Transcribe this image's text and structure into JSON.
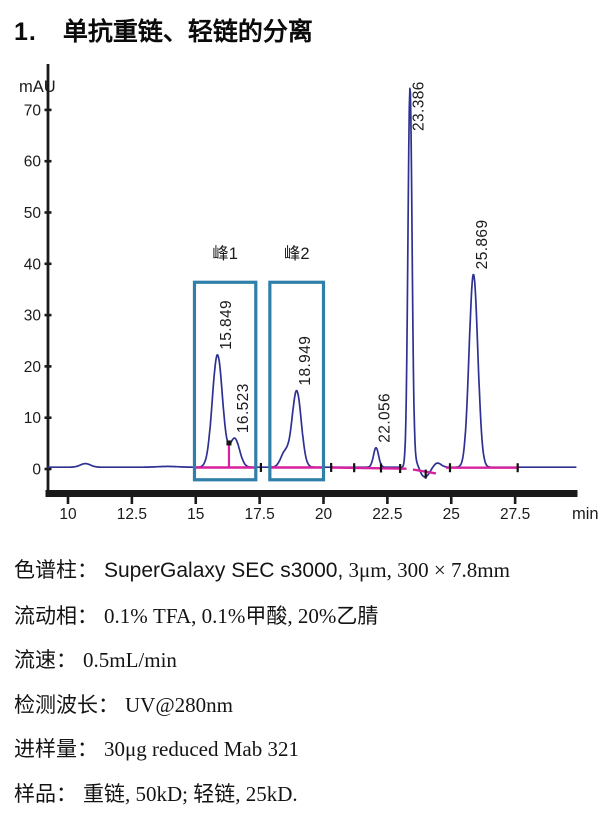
{
  "title": {
    "number": "1.",
    "text": "单抗重链、轻链的分离"
  },
  "chart_data": {
    "type": "line",
    "title": "",
    "xlabel": "min",
    "ylabel": "mAU",
    "xlim": [
      9.2,
      29.9
    ],
    "ylim": [
      -4,
      78
    ],
    "x_ticks": [
      {
        "t": 10,
        "label": "10"
      },
      {
        "t": 12.5,
        "label": "12.5"
      },
      {
        "t": 15,
        "label": "15"
      },
      {
        "t": 17.5,
        "label": "17.5"
      },
      {
        "t": 20,
        "label": "20"
      },
      {
        "t": 22.5,
        "label": "22.5"
      },
      {
        "t": 25,
        "label": "25"
      },
      {
        "t": 27.5,
        "label": "27.5"
      }
    ],
    "y_ticks": [
      {
        "v": 0,
        "label": "0"
      },
      {
        "v": 10,
        "label": "10"
      },
      {
        "v": 20,
        "label": "20"
      },
      {
        "v": 30,
        "label": "30"
      },
      {
        "v": 40,
        "label": "40"
      },
      {
        "v": 50,
        "label": "50"
      },
      {
        "v": 60,
        "label": "60"
      },
      {
        "v": 70,
        "label": "70"
      }
    ],
    "grid": false,
    "baseline_mAU": 0.35,
    "peaks": [
      {
        "label": "15.849",
        "rt_min": 15.849,
        "height_mAU": 21.9,
        "sigma": 0.2
      },
      {
        "label": "16.523",
        "rt_min": 16.523,
        "height_mAU": 5.6,
        "sigma": 0.19
      },
      {
        "label": "18.949",
        "rt_min": 18.949,
        "height_mAU": 14.9,
        "sigma": 0.18
      },
      {
        "label": "22.056",
        "rt_min": 22.056,
        "height_mAU": 3.8,
        "sigma": 0.1
      },
      {
        "label": "23.386",
        "rt_min": 23.386,
        "height_mAU": 74.0,
        "sigma": 0.08
      },
      {
        "label": "25.869",
        "rt_min": 25.869,
        "height_mAU": 37.6,
        "sigma": 0.17
      }
    ],
    "minor_features": [
      {
        "rt_min": 10.68,
        "height_mAU": 0.7,
        "sigma": 0.2
      },
      {
        "rt_min": 13.9,
        "height_mAU": 0.15,
        "sigma": 0.4
      },
      {
        "rt_min": 18.48,
        "height_mAU": 2.8,
        "sigma": 0.16
      },
      {
        "rt_min": 23.62,
        "height_mAU": 1.2,
        "sigma": 0.1
      },
      {
        "rt_min": 23.97,
        "height_mAU": -1.9,
        "sigma": 0.18
      },
      {
        "rt_min": 24.45,
        "height_mAU": 0.85,
        "sigma": 0.15
      }
    ],
    "regions": [
      {
        "label": "峰1",
        "t1": 14.95,
        "t2": 17.35
      },
      {
        "label": "峰2",
        "t1": 17.9,
        "t2": 20.0
      }
    ],
    "region_box_mAU": {
      "bottom": -2.1,
      "top": 36.4,
      "label_y": 42.1
    },
    "integration_baselines": [
      [
        [
          14.97,
          0.3
        ],
        [
          17.33,
          0.3
        ]
      ],
      [
        [
          17.95,
          0.3
        ],
        [
          19.98,
          0.3
        ]
      ],
      [
        [
          20.3,
          0.3
        ],
        [
          23.25,
          0.05
        ]
      ],
      [
        [
          23.5,
          -0.1
        ],
        [
          24.4,
          -0.85
        ]
      ],
      [
        [
          24.8,
          0.25
        ],
        [
          27.65,
          0.25
        ]
      ]
    ],
    "integration_marks": [
      {
        "t": 17.55,
        "m": 0.3
      },
      {
        "t": 20.3,
        "m": 0.3
      },
      {
        "t": 21.2,
        "m": 0.25
      },
      {
        "t": 22.25,
        "m": 0.2
      },
      {
        "t": 23.0,
        "m": 0.1
      },
      {
        "t": 24.0,
        "m": -1.0
      },
      {
        "t": 24.95,
        "m": 0.25
      },
      {
        "t": 27.6,
        "m": 0.25
      }
    ],
    "drop_line": {
      "t": 16.3,
      "from_mAU": 0.3
    },
    "colors": {
      "curve": "#2e3192",
      "integration": "#d9219f",
      "region_box": "#2f7fa9",
      "axis": "#1a1a1a",
      "text": "#1b1b1b"
    }
  },
  "conditions": {
    "rows": [
      {
        "label": "色谱柱：",
        "value_sans": "SuperGalaxy SEC s3000,",
        "value": " 3μm, 300 × 7.8mm"
      },
      {
        "label": "流动相：",
        "value": "0.1% TFA, 0.1%甲酸, 20%乙腈"
      },
      {
        "label": "流速：",
        "value": "0.5mL/min"
      },
      {
        "label": "检测波长：",
        "value": "UV@280nm"
      },
      {
        "label": "进样量：",
        "value": "30μg reduced Mab 321"
      },
      {
        "label": "样品：",
        "value": "重链, 50kD;  轻链, 25kD."
      }
    ]
  }
}
